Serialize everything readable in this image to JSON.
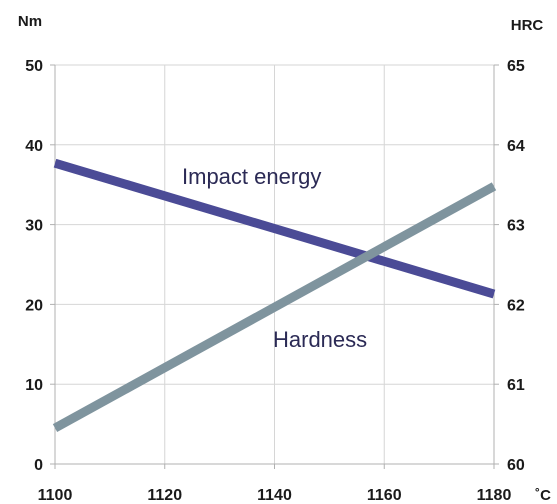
{
  "chart_data": {
    "type": "line",
    "title": "",
    "xlabel": "",
    "x_unit": "˚C",
    "y_left_unit": "Nm",
    "y_right_unit": "HRC",
    "x_ticks": [
      "1100",
      "1120",
      "1140",
      "1160",
      "1180"
    ],
    "y_left_ticks": [
      "0",
      "10",
      "20",
      "30",
      "40",
      "50"
    ],
    "y_right_ticks": [
      "60",
      "61",
      "62",
      "63",
      "64",
      "65"
    ],
    "xlim": [
      1100,
      1180
    ],
    "ylim_left": [
      0,
      50
    ],
    "ylim_right": [
      60,
      65
    ],
    "grid": true,
    "series": [
      {
        "name": "Impact energy",
        "axis": "left",
        "color": "#4b4b96",
        "x": [
          1100,
          1180
        ],
        "y": [
          37.7,
          21.3
        ]
      },
      {
        "name": "Hardness",
        "axis": "right",
        "color": "#7f949e",
        "x": [
          1100,
          1180
        ],
        "y": [
          60.45,
          63.48
        ]
      }
    ]
  }
}
